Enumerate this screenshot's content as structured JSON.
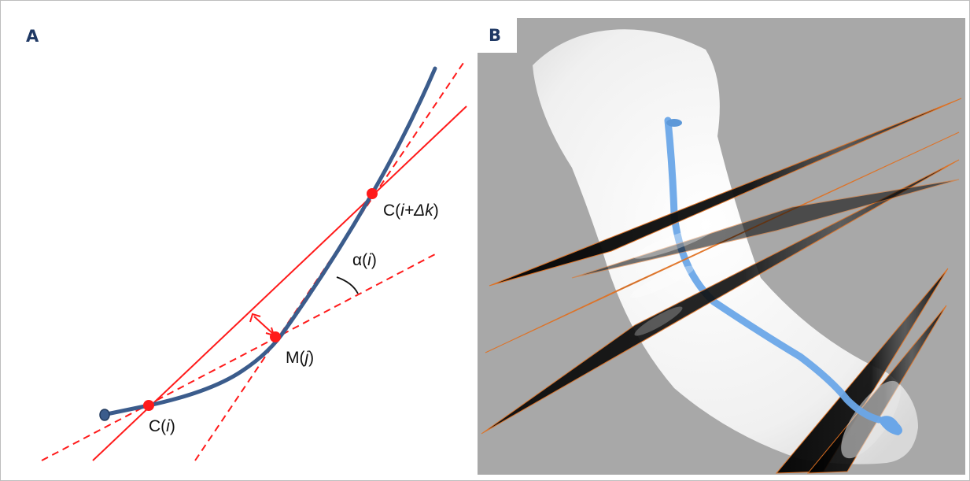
{
  "panel_a": {
    "label": "A",
    "points": {
      "ci_prefix": "C(",
      "ci_var": "i",
      "ci_suffix": ")",
      "mj_prefix": "M(",
      "mj_var": "j",
      "mj_suffix": ")",
      "cik_prefix": "C(",
      "cik_var": "i+Δk",
      "cik_suffix": ")",
      "alpha_prefix": "α(",
      "alpha_var": "i",
      "alpha_suffix": ")"
    },
    "colors": {
      "curve": "#3b5c8c",
      "point": "#ff1a1a",
      "lines": "#ff1a1a"
    }
  },
  "panel_b": {
    "label": "B",
    "colors": {
      "background": "#a8a8a8",
      "tissue": "#f2f2f2",
      "vessel": "#6aa6e8",
      "slice": "#000000",
      "slice_edge": "#e07020"
    }
  }
}
